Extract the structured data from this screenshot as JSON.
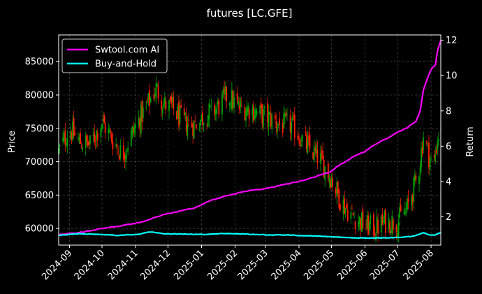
{
  "chart_data": {
    "type": "candlestick+line",
    "title": "futures [LC.GFE]",
    "xlabel": "",
    "ylabel_left": "Price",
    "ylabel_right": "Return",
    "x_start": "2024-08-22",
    "x_end": "2025-08-10",
    "x_ticks": [
      "2024-09-01",
      "2024-10-01",
      "2024-11-01",
      "2024-12-01",
      "2025-01-01",
      "2025-02-01",
      "2025-03-01",
      "2025-04-01",
      "2025-05-01",
      "2025-06-01",
      "2025-07-01",
      "2025-08-01"
    ],
    "x_tick_labels": [
      "2024-09",
      "2024-10",
      "2024-11",
      "2024-12",
      "2025-01",
      "2025-02",
      "2025-03",
      "2025-04",
      "2025-05",
      "2025-06",
      "2025-07",
      "2025-08"
    ],
    "ylim_left": [
      57500,
      89000
    ],
    "yticks_left": [
      60000,
      65000,
      70000,
      75000,
      80000,
      85000
    ],
    "ylim_right": [
      0.4,
      12.3
    ],
    "yticks_right": [
      2,
      4,
      6,
      8,
      10,
      12
    ],
    "grid": true,
    "legend_position": "top-left",
    "price_close_path": [
      [
        "2024-08-22",
        71500
      ],
      [
        "2024-09-01",
        75000
      ],
      [
        "2024-09-10",
        73000
      ],
      [
        "2024-09-20",
        72500
      ],
      [
        "2024-10-01",
        76000
      ],
      [
        "2024-10-10",
        73500
      ],
      [
        "2024-10-20",
        71000
      ],
      [
        "2024-10-28",
        74000
      ],
      [
        "2024-11-05",
        76500
      ],
      [
        "2024-11-12",
        78500
      ],
      [
        "2024-11-20",
        81000
      ],
      [
        "2024-11-28",
        78500
      ],
      [
        "2024-12-05",
        78000
      ],
      [
        "2024-12-15",
        76000
      ],
      [
        "2024-12-25",
        75500
      ],
      [
        "2025-01-05",
        77000
      ],
      [
        "2025-01-15",
        78000
      ],
      [
        "2025-01-25",
        80000
      ],
      [
        "2025-02-05",
        78000
      ],
      [
        "2025-02-15",
        78000
      ],
      [
        "2025-02-25",
        77000
      ],
      [
        "2025-03-05",
        76500
      ],
      [
        "2025-03-15",
        75500
      ],
      [
        "2025-03-25",
        75500
      ],
      [
        "2025-04-01",
        74000
      ],
      [
        "2025-04-10",
        72000
      ],
      [
        "2025-04-20",
        70500
      ],
      [
        "2025-05-01",
        67500
      ],
      [
        "2025-05-10",
        64000
      ],
      [
        "2025-05-20",
        62000
      ],
      [
        "2025-06-01",
        60500
      ],
      [
        "2025-06-10",
        60000
      ],
      [
        "2025-06-20",
        61000
      ],
      [
        "2025-07-01",
        61000
      ],
      [
        "2025-07-10",
        63000
      ],
      [
        "2025-07-20",
        68000
      ],
      [
        "2025-07-25",
        74000
      ],
      [
        "2025-07-30",
        71000
      ],
      [
        "2025-08-03",
        69000
      ],
      [
        "2025-08-07",
        73500
      ],
      [
        "2025-08-10",
        75000
      ]
    ],
    "series": [
      {
        "name": "Swtool.com AI",
        "color": "#ff00ff",
        "points": [
          [
            "2024-08-22",
            1.0
          ],
          [
            "2024-09-10",
            1.1
          ],
          [
            "2024-10-01",
            1.35
          ],
          [
            "2024-10-20",
            1.5
          ],
          [
            "2024-11-10",
            1.75
          ],
          [
            "2024-11-25",
            2.1
          ],
          [
            "2024-12-10",
            2.3
          ],
          [
            "2024-12-25",
            2.5
          ],
          [
            "2025-01-10",
            2.95
          ],
          [
            "2025-01-25",
            3.2
          ],
          [
            "2025-02-10",
            3.45
          ],
          [
            "2025-03-01",
            3.6
          ],
          [
            "2025-03-20",
            3.85
          ],
          [
            "2025-04-10",
            4.15
          ],
          [
            "2025-04-30",
            4.55
          ],
          [
            "2025-05-10",
            5.0
          ],
          [
            "2025-05-20",
            5.35
          ],
          [
            "2025-06-01",
            5.7
          ],
          [
            "2025-06-10",
            6.1
          ],
          [
            "2025-06-20",
            6.4
          ],
          [
            "2025-06-30",
            6.75
          ],
          [
            "2025-07-10",
            7.05
          ],
          [
            "2025-07-18",
            7.4
          ],
          [
            "2025-07-22",
            8.0
          ],
          [
            "2025-07-25",
            9.2
          ],
          [
            "2025-07-29",
            9.9
          ],
          [
            "2025-08-02",
            10.45
          ],
          [
            "2025-08-05",
            10.6
          ],
          [
            "2025-08-07",
            11.4
          ],
          [
            "2025-08-10",
            12.0
          ]
        ]
      },
      {
        "name": "Buy-and-Hold",
        "color": "#00ffff",
        "points": [
          [
            "2024-08-22",
            0.95
          ],
          [
            "2024-09-10",
            1.05
          ],
          [
            "2024-10-01",
            1.0
          ],
          [
            "2024-10-15",
            0.95
          ],
          [
            "2024-11-05",
            1.02
          ],
          [
            "2024-11-15",
            1.15
          ],
          [
            "2024-11-25",
            1.05
          ],
          [
            "2024-12-15",
            1.02
          ],
          [
            "2025-01-01",
            1.0
          ],
          [
            "2025-01-20",
            1.05
          ],
          [
            "2025-02-10",
            1.03
          ],
          [
            "2025-03-01",
            0.98
          ],
          [
            "2025-03-20",
            0.98
          ],
          [
            "2025-04-10",
            0.93
          ],
          [
            "2025-05-01",
            0.87
          ],
          [
            "2025-05-20",
            0.81
          ],
          [
            "2025-06-10",
            0.8
          ],
          [
            "2025-07-01",
            0.83
          ],
          [
            "2025-07-15",
            0.9
          ],
          [
            "2025-07-25",
            1.1
          ],
          [
            "2025-07-30",
            0.98
          ],
          [
            "2025-08-04",
            0.96
          ],
          [
            "2025-08-07",
            1.05
          ],
          [
            "2025-08-10",
            1.1
          ]
        ]
      }
    ],
    "up_color": "#00a000",
    "down_color": "#ff2000"
  }
}
